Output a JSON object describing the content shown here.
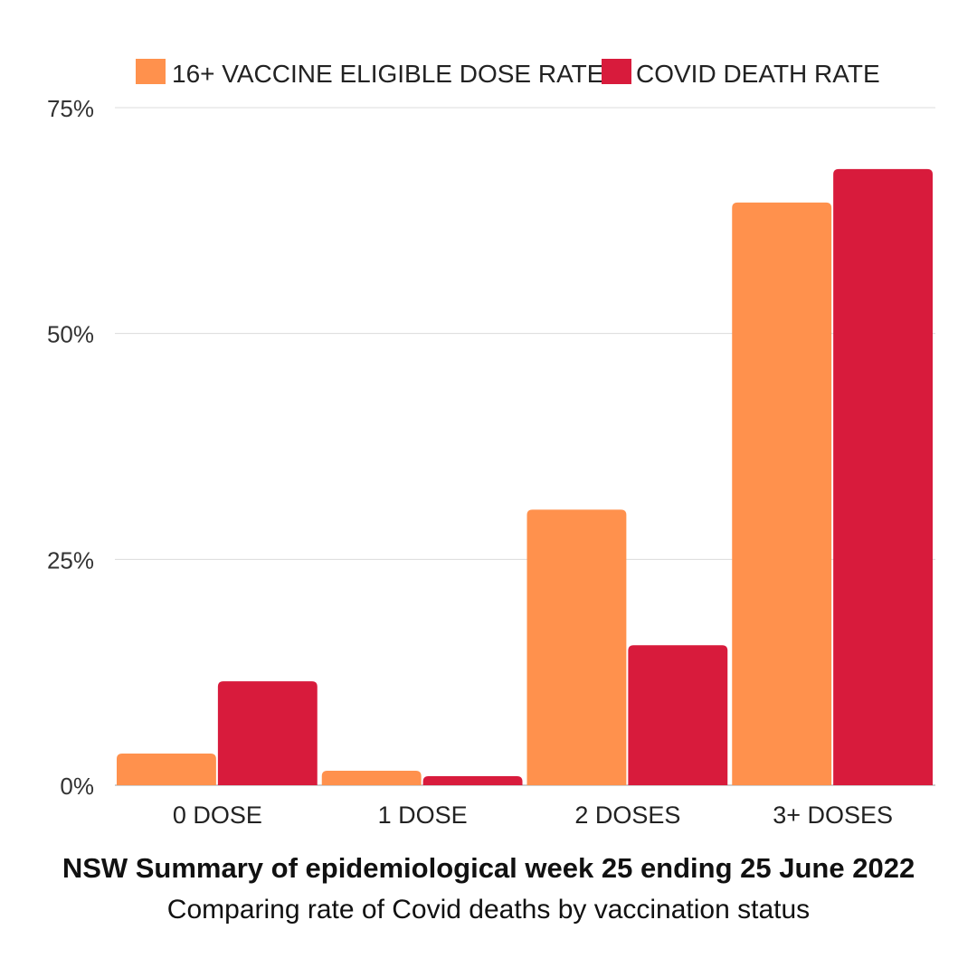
{
  "chart_data": {
    "type": "bar",
    "title": "NSW Summary of epidemiological week 25 ending 25 June 2022",
    "subtitle": "Comparing rate of Covid deaths by vaccination status",
    "categories": [
      "0 DOSE",
      "1 DOSE",
      "2 DOSES",
      "3+ DOSES"
    ],
    "series": [
      {
        "name": "16+ VACCINE ELIGIBLE DOSE RATE",
        "color": "#FF914D",
        "values": [
          3.5,
          1.6,
          30.5,
          64.5
        ]
      },
      {
        "name": "COVID DEATH RATE",
        "color": "#D81B3C",
        "values": [
          11.5,
          1.0,
          15.5,
          68.2
        ]
      }
    ],
    "ylim": [
      0,
      75
    ],
    "yticks": [
      0,
      25,
      50,
      75
    ],
    "ytick_labels": [
      "0%",
      "25%",
      "50%",
      "75%"
    ],
    "xlabel": "",
    "ylabel": "",
    "grid": true,
    "legend": "top-center"
  }
}
